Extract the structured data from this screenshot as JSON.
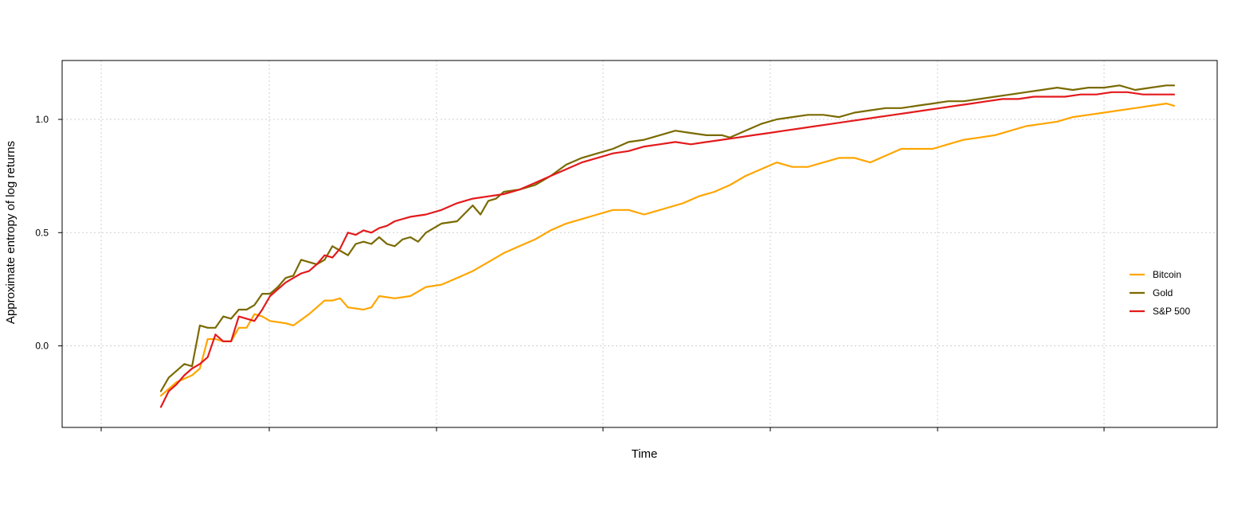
{
  "chart_data": {
    "type": "line",
    "title": "",
    "xlabel": "Time",
    "ylabel": "Approximate entropy of log returns",
    "x_tick_labels": [],
    "y_ticks": [
      0.0,
      0.5,
      1.0
    ],
    "y_tick_labels": [
      "0.0",
      "0.5",
      "1.0"
    ],
    "ylim": [
      -0.36,
      1.26
    ],
    "grid": true,
    "legend_position": "right",
    "series": [
      {
        "name": "Bitcoin",
        "color": "#FFA500",
        "points": [
          [
            0,
            -0.22
          ],
          [
            2,
            -0.16
          ],
          [
            4,
            -0.13
          ],
          [
            5,
            -0.1
          ],
          [
            6,
            0.03
          ],
          [
            7,
            0.03
          ],
          [
            8,
            0.02
          ],
          [
            9,
            0.02
          ],
          [
            10,
            0.08
          ],
          [
            11,
            0.08
          ],
          [
            12,
            0.14
          ],
          [
            13,
            0.13
          ],
          [
            14,
            0.11
          ],
          [
            16,
            0.1
          ],
          [
            17,
            0.09
          ],
          [
            19,
            0.14
          ],
          [
            20,
            0.17
          ],
          [
            21,
            0.2
          ],
          [
            22,
            0.2
          ],
          [
            23,
            0.21
          ],
          [
            24,
            0.17
          ],
          [
            26,
            0.16
          ],
          [
            27,
            0.17
          ],
          [
            28,
            0.22
          ],
          [
            30,
            0.21
          ],
          [
            32,
            0.22
          ],
          [
            34,
            0.26
          ],
          [
            36,
            0.27
          ],
          [
            38,
            0.3
          ],
          [
            40,
            0.33
          ],
          [
            42,
            0.37
          ],
          [
            44,
            0.41
          ],
          [
            46,
            0.44
          ],
          [
            48,
            0.47
          ],
          [
            50,
            0.51
          ],
          [
            52,
            0.54
          ],
          [
            54,
            0.56
          ],
          [
            56,
            0.58
          ],
          [
            58,
            0.6
          ],
          [
            60,
            0.6
          ],
          [
            62,
            0.58
          ],
          [
            63,
            0.59
          ],
          [
            65,
            0.61
          ],
          [
            67,
            0.63
          ],
          [
            69,
            0.66
          ],
          [
            71,
            0.68
          ],
          [
            73,
            0.71
          ],
          [
            75,
            0.75
          ],
          [
            77,
            0.78
          ],
          [
            79,
            0.81
          ],
          [
            81,
            0.79
          ],
          [
            83,
            0.79
          ],
          [
            85,
            0.81
          ],
          [
            87,
            0.83
          ],
          [
            89,
            0.83
          ],
          [
            91,
            0.81
          ],
          [
            93,
            0.84
          ],
          [
            95,
            0.87
          ],
          [
            97,
            0.87
          ],
          [
            99,
            0.87
          ],
          [
            101,
            0.89
          ],
          [
            103,
            0.91
          ],
          [
            105,
            0.92
          ],
          [
            107,
            0.93
          ],
          [
            109,
            0.95
          ],
          [
            111,
            0.97
          ],
          [
            113,
            0.98
          ],
          [
            115,
            0.99
          ],
          [
            117,
            1.01
          ],
          [
            119,
            1.02
          ],
          [
            121,
            1.03
          ],
          [
            123,
            1.04
          ],
          [
            125,
            1.05
          ],
          [
            127,
            1.06
          ],
          [
            129,
            1.07
          ],
          [
            130,
            1.06
          ]
        ]
      },
      {
        "name": "Gold",
        "color": "#7A6A00",
        "points": [
          [
            0,
            -0.2
          ],
          [
            1,
            -0.14
          ],
          [
            2,
            -0.11
          ],
          [
            3,
            -0.08
          ],
          [
            4,
            -0.09
          ],
          [
            5,
            0.09
          ],
          [
            6,
            0.08
          ],
          [
            7,
            0.08
          ],
          [
            8,
            0.13
          ],
          [
            9,
            0.12
          ],
          [
            10,
            0.16
          ],
          [
            11,
            0.16
          ],
          [
            12,
            0.18
          ],
          [
            13,
            0.23
          ],
          [
            14,
            0.23
          ],
          [
            15,
            0.26
          ],
          [
            16,
            0.3
          ],
          [
            17,
            0.31
          ],
          [
            18,
            0.38
          ],
          [
            19,
            0.37
          ],
          [
            20,
            0.36
          ],
          [
            21,
            0.38
          ],
          [
            22,
            0.44
          ],
          [
            23,
            0.42
          ],
          [
            24,
            0.4
          ],
          [
            25,
            0.45
          ],
          [
            26,
            0.46
          ],
          [
            27,
            0.45
          ],
          [
            28,
            0.48
          ],
          [
            29,
            0.45
          ],
          [
            30,
            0.44
          ],
          [
            31,
            0.47
          ],
          [
            32,
            0.48
          ],
          [
            33,
            0.46
          ],
          [
            34,
            0.5
          ],
          [
            36,
            0.54
          ],
          [
            38,
            0.55
          ],
          [
            40,
            0.62
          ],
          [
            41,
            0.58
          ],
          [
            42,
            0.64
          ],
          [
            43,
            0.65
          ],
          [
            44,
            0.68
          ],
          [
            46,
            0.69
          ],
          [
            48,
            0.71
          ],
          [
            50,
            0.75
          ],
          [
            52,
            0.8
          ],
          [
            54,
            0.83
          ],
          [
            56,
            0.85
          ],
          [
            58,
            0.87
          ],
          [
            60,
            0.9
          ],
          [
            62,
            0.91
          ],
          [
            64,
            0.93
          ],
          [
            66,
            0.95
          ],
          [
            68,
            0.94
          ],
          [
            70,
            0.93
          ],
          [
            72,
            0.93
          ],
          [
            73,
            0.92
          ],
          [
            75,
            0.95
          ],
          [
            77,
            0.98
          ],
          [
            79,
            1.0
          ],
          [
            81,
            1.01
          ],
          [
            83,
            1.02
          ],
          [
            85,
            1.02
          ],
          [
            87,
            1.01
          ],
          [
            89,
            1.03
          ],
          [
            91,
            1.04
          ],
          [
            93,
            1.05
          ],
          [
            95,
            1.05
          ],
          [
            97,
            1.06
          ],
          [
            99,
            1.07
          ],
          [
            101,
            1.08
          ],
          [
            103,
            1.08
          ],
          [
            105,
            1.09
          ],
          [
            107,
            1.1
          ],
          [
            109,
            1.11
          ],
          [
            111,
            1.12
          ],
          [
            113,
            1.13
          ],
          [
            115,
            1.14
          ],
          [
            117,
            1.13
          ],
          [
            119,
            1.14
          ],
          [
            121,
            1.14
          ],
          [
            123,
            1.15
          ],
          [
            125,
            1.13
          ],
          [
            127,
            1.14
          ],
          [
            129,
            1.15
          ],
          [
            130,
            1.15
          ]
        ]
      },
      {
        "name": "S&P 500",
        "color": "#E31A1C",
        "points": [
          [
            0,
            -0.27
          ],
          [
            1,
            -0.2
          ],
          [
            2,
            -0.17
          ],
          [
            3,
            -0.13
          ],
          [
            4,
            -0.1
          ],
          [
            5,
            -0.08
          ],
          [
            6,
            -0.05
          ],
          [
            7,
            0.05
          ],
          [
            8,
            0.02
          ],
          [
            9,
            0.02
          ],
          [
            10,
            0.13
          ],
          [
            11,
            0.12
          ],
          [
            12,
            0.11
          ],
          [
            13,
            0.16
          ],
          [
            14,
            0.22
          ],
          [
            15,
            0.25
          ],
          [
            16,
            0.28
          ],
          [
            17,
            0.3
          ],
          [
            18,
            0.32
          ],
          [
            19,
            0.33
          ],
          [
            20,
            0.36
          ],
          [
            21,
            0.4
          ],
          [
            22,
            0.39
          ],
          [
            23,
            0.43
          ],
          [
            24,
            0.5
          ],
          [
            25,
            0.49
          ],
          [
            26,
            0.51
          ],
          [
            27,
            0.5
          ],
          [
            28,
            0.52
          ],
          [
            29,
            0.53
          ],
          [
            30,
            0.55
          ],
          [
            32,
            0.57
          ],
          [
            34,
            0.58
          ],
          [
            36,
            0.6
          ],
          [
            38,
            0.63
          ],
          [
            40,
            0.65
          ],
          [
            42,
            0.66
          ],
          [
            44,
            0.67
          ],
          [
            46,
            0.69
          ],
          [
            48,
            0.72
          ],
          [
            50,
            0.75
          ],
          [
            52,
            0.78
          ],
          [
            54,
            0.81
          ],
          [
            56,
            0.83
          ],
          [
            58,
            0.85
          ],
          [
            60,
            0.86
          ],
          [
            62,
            0.88
          ],
          [
            64,
            0.89
          ],
          [
            66,
            0.9
          ],
          [
            68,
            0.89
          ],
          [
            70,
            0.9
          ],
          [
            72,
            0.91
          ],
          [
            74,
            0.92
          ],
          [
            76,
            0.93
          ],
          [
            78,
            0.94
          ],
          [
            80,
            0.95
          ],
          [
            82,
            0.96
          ],
          [
            84,
            0.97
          ],
          [
            86,
            0.98
          ],
          [
            88,
            0.99
          ],
          [
            90,
            1.0
          ],
          [
            92,
            1.01
          ],
          [
            94,
            1.02
          ],
          [
            96,
            1.03
          ],
          [
            98,
            1.04
          ],
          [
            100,
            1.05
          ],
          [
            102,
            1.06
          ],
          [
            104,
            1.07
          ],
          [
            106,
            1.08
          ],
          [
            108,
            1.09
          ],
          [
            110,
            1.09
          ],
          [
            112,
            1.1
          ],
          [
            114,
            1.1
          ],
          [
            116,
            1.1
          ],
          [
            118,
            1.11
          ],
          [
            120,
            1.11
          ],
          [
            122,
            1.12
          ],
          [
            124,
            1.12
          ],
          [
            126,
            1.11
          ],
          [
            128,
            1.11
          ],
          [
            130,
            1.11
          ]
        ]
      }
    ]
  }
}
